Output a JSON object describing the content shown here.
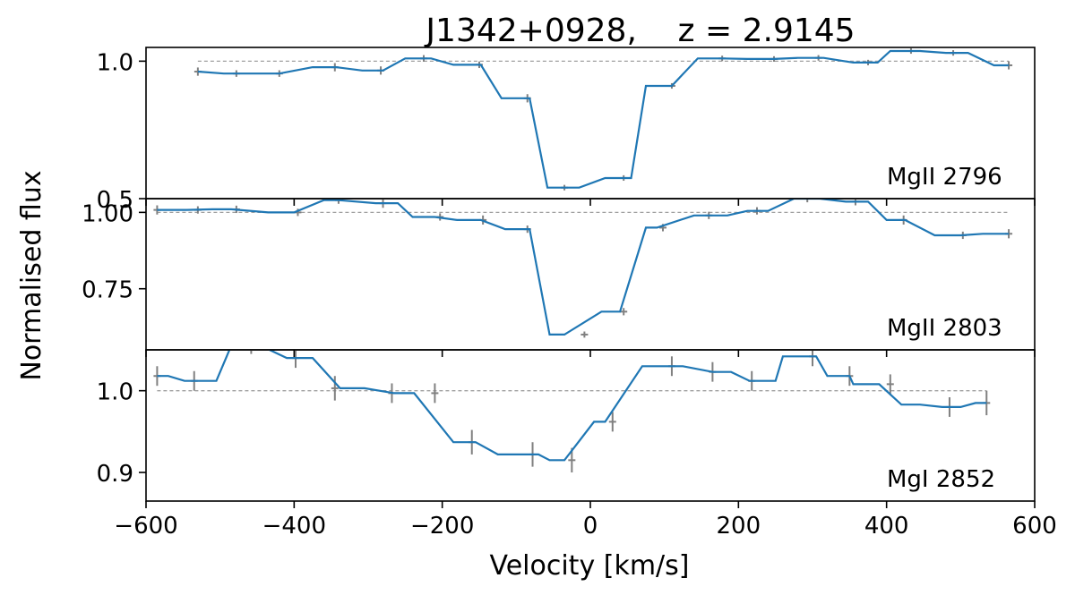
{
  "chart_data": {
    "type": "line",
    "title": "J1342+0928,    z = 2.9145",
    "xlabel": "Velocity [km/s]",
    "ylabel": "Normalised flux",
    "xlim": [
      -600,
      600
    ],
    "xticks": [
      -600,
      -400,
      -200,
      0,
      200,
      400,
      600
    ],
    "xtick_labels": [
      "−600",
      "−400",
      "−200",
      "0",
      "200",
      "400",
      "600"
    ],
    "shared_x": true,
    "panels": [
      {
        "label": "MgII 2796",
        "ylim": [
          0.5,
          1.05
        ],
        "yticks": [
          0.5,
          1.0
        ],
        "ytick_labels": [
          "0.5",
          "1.0"
        ],
        "continuum": {
          "value": 1.0,
          "x": [
            -530,
            565
          ]
        },
        "step_x": [
          -530,
          -495,
          -455,
          -420,
          -375,
          -343,
          -308,
          -280,
          -250,
          -215,
          -185,
          -148,
          -120,
          -82,
          -58,
          -15,
          20,
          55,
          75,
          110,
          145,
          178,
          212,
          248,
          280,
          315,
          355,
          388,
          405,
          445,
          480,
          510,
          545,
          565
        ],
        "step_y": [
          0.962,
          0.955,
          0.955,
          0.955,
          0.978,
          0.978,
          0.966,
          0.966,
          1.01,
          1.01,
          0.987,
          0.987,
          0.865,
          0.865,
          0.54,
          0.54,
          0.575,
          0.575,
          0.91,
          0.91,
          1.01,
          1.01,
          1.008,
          1.008,
          1.012,
          1.012,
          0.995,
          0.995,
          1.037,
          1.037,
          1.03,
          1.03,
          0.985,
          0.985
        ],
        "errorbars": [
          {
            "x": -530,
            "y": 0.962,
            "err": 0.015
          },
          {
            "x": -478,
            "y": 0.955,
            "err": 0.012
          },
          {
            "x": -420,
            "y": 0.955,
            "err": 0.012
          },
          {
            "x": -345,
            "y": 0.978,
            "err": 0.015
          },
          {
            "x": -283,
            "y": 0.966,
            "err": 0.015
          },
          {
            "x": -225,
            "y": 1.01,
            "err": 0.012
          },
          {
            "x": -150,
            "y": 0.987,
            "err": 0.012
          },
          {
            "x": -85,
            "y": 0.865,
            "err": 0.015
          },
          {
            "x": -35,
            "y": 0.54,
            "err": 0.01
          },
          {
            "x": 45,
            "y": 0.575,
            "err": 0.01
          },
          {
            "x": 110,
            "y": 0.91,
            "err": 0.01
          },
          {
            "x": 178,
            "y": 1.01,
            "err": 0.01
          },
          {
            "x": 248,
            "y": 1.008,
            "err": 0.01
          },
          {
            "x": 308,
            "y": 1.012,
            "err": 0.01
          },
          {
            "x": 375,
            "y": 0.995,
            "err": 0.01
          },
          {
            "x": 433,
            "y": 1.037,
            "err": 0.01
          },
          {
            "x": 490,
            "y": 1.03,
            "err": 0.01
          },
          {
            "x": 565,
            "y": 0.985,
            "err": 0.015
          }
        ]
      },
      {
        "label": "MgII 2803",
        "ylim": [
          0.55,
          1.045
        ],
        "yticks": [
          0.75,
          1.0
        ],
        "ytick_labels": [
          "0.75",
          "1.00"
        ],
        "continuum": {
          "value": 1.0,
          "x": [
            -585,
            565
          ]
        },
        "step_x": [
          -585,
          -545,
          -510,
          -485,
          -435,
          -400,
          -360,
          -340,
          -290,
          -260,
          -240,
          -210,
          -180,
          -148,
          -115,
          -82,
          -55,
          -35,
          15,
          40,
          75,
          90,
          140,
          185,
          212,
          240,
          275,
          310,
          345,
          375,
          400,
          425,
          465,
          500,
          530,
          565
        ],
        "step_y": [
          1.008,
          1.008,
          1.01,
          1.01,
          1.0,
          1.0,
          1.04,
          1.04,
          1.03,
          1.03,
          0.985,
          0.985,
          0.975,
          0.975,
          0.945,
          0.945,
          0.6,
          0.6,
          0.675,
          0.675,
          0.95,
          0.95,
          0.99,
          0.99,
          1.005,
          1.005,
          1.045,
          1.045,
          1.035,
          1.035,
          0.975,
          0.975,
          0.925,
          0.925,
          0.93,
          0.93
        ],
        "errorbars": [
          {
            "x": -585,
            "y": 1.008,
            "err": 0.015
          },
          {
            "x": -530,
            "y": 1.008,
            "err": 0.012
          },
          {
            "x": -478,
            "y": 1.01,
            "err": 0.012
          },
          {
            "x": -395,
            "y": 1.0,
            "err": 0.012
          },
          {
            "x": -340,
            "y": 1.04,
            "err": 0.012
          },
          {
            "x": -280,
            "y": 1.03,
            "err": 0.015
          },
          {
            "x": -203,
            "y": 0.985,
            "err": 0.012
          },
          {
            "x": -145,
            "y": 0.975,
            "err": 0.015
          },
          {
            "x": -85,
            "y": 0.945,
            "err": 0.012
          },
          {
            "x": -8,
            "y": 0.6,
            "err": 0.01
          },
          {
            "x": 45,
            "y": 0.675,
            "err": 0.012
          },
          {
            "x": 98,
            "y": 0.95,
            "err": 0.012
          },
          {
            "x": 160,
            "y": 0.99,
            "err": 0.012
          },
          {
            "x": 225,
            "y": 1.005,
            "err": 0.012
          },
          {
            "x": 293,
            "y": 1.045,
            "err": 0.012
          },
          {
            "x": 358,
            "y": 1.035,
            "err": 0.012
          },
          {
            "x": 423,
            "y": 0.975,
            "err": 0.015
          },
          {
            "x": 503,
            "y": 0.925,
            "err": 0.012
          },
          {
            "x": 565,
            "y": 0.93,
            "err": 0.015
          }
        ]
      },
      {
        "label": "MgI 2852",
        "ylim": [
          0.865,
          1.05
        ],
        "yticks": [
          0.9,
          1.0
        ],
        "ytick_labels": [
          "0.9",
          "1.0"
        ],
        "continuum": {
          "value": 1.0,
          "x": [
            -585,
            535
          ]
        },
        "step_x": [
          -585,
          -570,
          -548,
          -505,
          -485,
          -445,
          -410,
          -375,
          -338,
          -305,
          -265,
          -238,
          -185,
          -155,
          -125,
          -70,
          -55,
          -35,
          5,
          20,
          70,
          125,
          165,
          190,
          215,
          250,
          260,
          305,
          320,
          350,
          355,
          390,
          420,
          445,
          475,
          500,
          520,
          535
        ],
        "step_y": [
          1.018,
          1.018,
          1.012,
          1.012,
          1.055,
          1.055,
          1.04,
          1.04,
          1.003,
          1.003,
          0.997,
          0.997,
          0.937,
          0.937,
          0.922,
          0.922,
          0.915,
          0.915,
          0.962,
          0.962,
          1.03,
          1.03,
          1.023,
          1.023,
          1.012,
          1.012,
          1.042,
          1.042,
          1.018,
          1.018,
          1.008,
          1.008,
          0.983,
          0.983,
          0.98,
          0.98,
          0.985,
          0.985
        ],
        "errorbars": [
          {
            "x": -585,
            "y": 1.018,
            "err": 0.012
          },
          {
            "x": -535,
            "y": 1.012,
            "err": 0.012
          },
          {
            "x": -458,
            "y": 1.055,
            "err": 0.01
          },
          {
            "x": -398,
            "y": 1.04,
            "err": 0.012
          },
          {
            "x": -345,
            "y": 1.003,
            "err": 0.015
          },
          {
            "x": -268,
            "y": 0.997,
            "err": 0.012
          },
          {
            "x": -210,
            "y": 0.997,
            "err": 0.012
          },
          {
            "x": -160,
            "y": 0.937,
            "err": 0.015
          },
          {
            "x": -78,
            "y": 0.922,
            "err": 0.015
          },
          {
            "x": -25,
            "y": 0.915,
            "err": 0.015
          },
          {
            "x": 30,
            "y": 0.962,
            "err": 0.012
          },
          {
            "x": 110,
            "y": 1.03,
            "err": 0.012
          },
          {
            "x": 165,
            "y": 1.023,
            "err": 0.012
          },
          {
            "x": 218,
            "y": 1.012,
            "err": 0.012
          },
          {
            "x": 300,
            "y": 1.042,
            "err": 0.012
          },
          {
            "x": 350,
            "y": 1.018,
            "err": 0.012
          },
          {
            "x": 405,
            "y": 1.008,
            "err": 0.012
          },
          {
            "x": 485,
            "y": 0.98,
            "err": 0.012
          },
          {
            "x": 535,
            "y": 0.985,
            "err": 0.015
          }
        ]
      }
    ]
  },
  "colors": {
    "step": "#1f77b4",
    "errorbar": "#808080",
    "continuum": "#a0a0a0",
    "axes": "#000000"
  }
}
